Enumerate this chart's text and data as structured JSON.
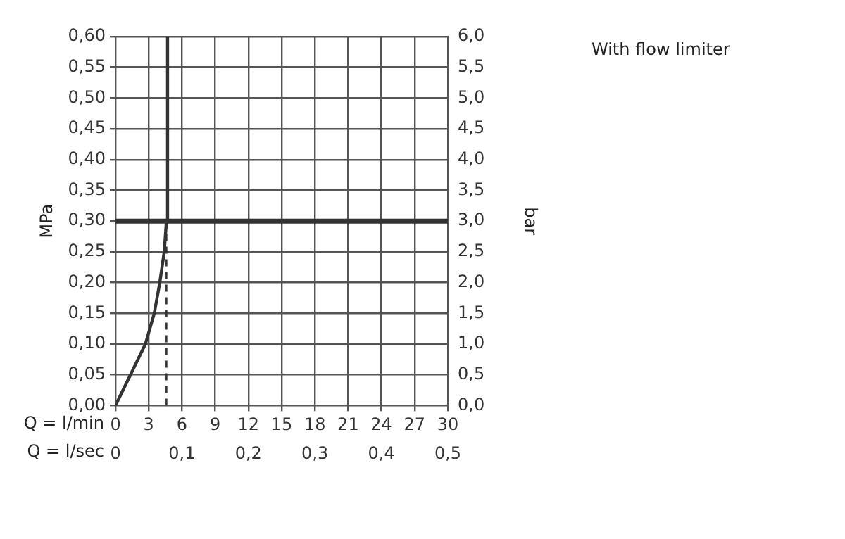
{
  "chart_data": {
    "type": "line",
    "title": "With flow limiter",
    "xlabel": "Q = l/min",
    "x2label": "Q = l/sec",
    "ylabel": "MPa",
    "y2label": "bar",
    "xlim": [
      0,
      30
    ],
    "xticks": [
      0,
      3,
      6,
      9,
      12,
      15,
      18,
      21,
      24,
      27,
      30
    ],
    "x2lim": [
      0,
      0.5
    ],
    "x2ticks": [
      0,
      {
        "value": 0.1,
        "label": "0,1"
      },
      {
        "value": 0.2,
        "label": "0,2"
      },
      {
        "value": 0.3,
        "label": "0,3"
      },
      {
        "value": 0.4,
        "label": "0,4"
      },
      {
        "value": 0.5,
        "label": "0,5"
      }
    ],
    "ylim": [
      0,
      0.6
    ],
    "yticks": [
      {
        "value": 0,
        "label": "0,00"
      },
      {
        "value": 0.05,
        "label": "0,05"
      },
      {
        "value": 0.1,
        "label": "0,10"
      },
      {
        "value": 0.15,
        "label": "0,15"
      },
      {
        "value": 0.2,
        "label": "0,20"
      },
      {
        "value": 0.25,
        "label": "0,25"
      },
      {
        "value": 0.3,
        "label": "0,30"
      },
      {
        "value": 0.35,
        "label": "0,35"
      },
      {
        "value": 0.4,
        "label": "0,40"
      },
      {
        "value": 0.45,
        "label": "0,45"
      },
      {
        "value": 0.5,
        "label": "0,50"
      },
      {
        "value": 0.55,
        "label": "0,55"
      },
      {
        "value": 0.6,
        "label": "0,60"
      }
    ],
    "y2lim": [
      0,
      6
    ],
    "y2ticks": [
      {
        "value": 0,
        "label": "0,0"
      },
      {
        "value": 0.5,
        "label": "0,5"
      },
      {
        "value": 1,
        "label": "1,0"
      },
      {
        "value": 1.5,
        "label": "1,5"
      },
      {
        "value": 2,
        "label": "2,0"
      },
      {
        "value": 2.5,
        "label": "2,5"
      },
      {
        "value": 3,
        "label": "3,0"
      },
      {
        "value": 3.5,
        "label": "3,5"
      },
      {
        "value": 4,
        "label": "4,0"
      },
      {
        "value": 4.5,
        "label": "4,5"
      },
      {
        "value": 5,
        "label": "5,0"
      },
      {
        "value": 5.5,
        "label": "5,5"
      },
      {
        "value": 6,
        "label": "6,0"
      }
    ],
    "grid": true,
    "series": [
      {
        "color": "#333333",
        "x": [
          0,
          1.35,
          2.7,
          3.5,
          4.0,
          4.4,
          4.6,
          4.7
        ],
        "values": [
          0,
          0.05,
          0.1,
          0.15,
          0.2,
          0.25,
          0.3,
          0.6
        ]
      },
      {
        "color": "#333333",
        "line_style": "dashed",
        "x": [
          4.6,
          4.6
        ],
        "values": [
          0,
          0.3
        ]
      }
    ],
    "ref_lines": [
      {
        "axis": "y",
        "value": 0.3,
        "color": "#333333"
      }
    ]
  }
}
